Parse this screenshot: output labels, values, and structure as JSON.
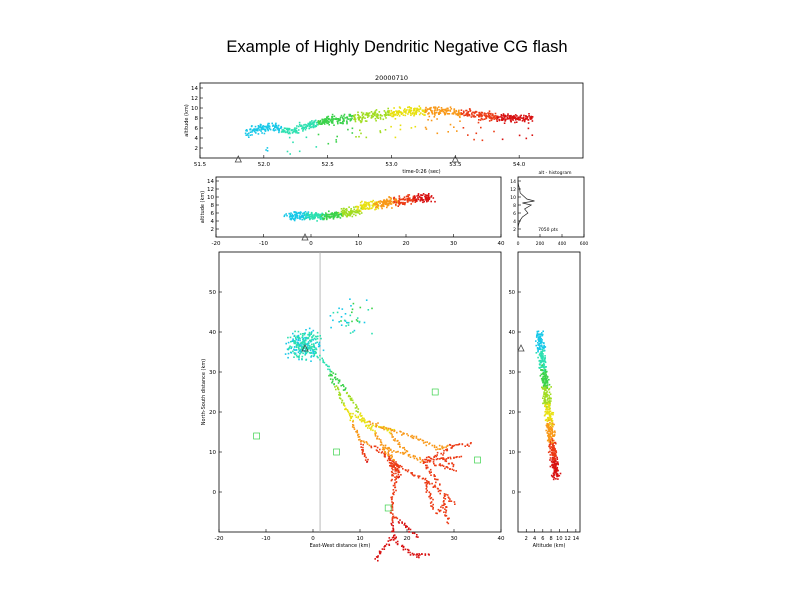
{
  "slide": {
    "title": "Example of Highly Dendritic Negative CG flash"
  },
  "colors": {
    "scale": [
      "#18c8e8",
      "#2ce0b0",
      "#3ad24a",
      "#a0dc20",
      "#e8e010",
      "#f89818",
      "#ec3a14",
      "#d81010"
    ],
    "frame": "#000000",
    "track": "#aaaaaa"
  },
  "chart_data": [
    {
      "panel": "altitude-time",
      "type": "scatter",
      "title": "20000710",
      "xlabel": "time-0:26 (sec)",
      "ylabel": "altitude (km)",
      "xlim": [
        51.5,
        54.5
      ],
      "ylim": [
        0,
        15
      ],
      "x_ticks": [
        "51.5",
        "52.0",
        "52.5",
        "53.0",
        "53.5",
        "54.0"
      ],
      "y_ticks": [
        "2",
        "4",
        "6",
        "8",
        "10",
        "12",
        "14"
      ],
      "triangle_markers_x": [
        51.8,
        53.5
      ],
      "sample_points": [
        {
          "x": 51.85,
          "y": 5.0
        },
        {
          "x": 52.05,
          "y": 6.5
        },
        {
          "x": 52.2,
          "y": 5.5
        },
        {
          "x": 52.45,
          "y": 7.5
        },
        {
          "x": 52.8,
          "y": 8.5
        },
        {
          "x": 53.1,
          "y": 9.5
        },
        {
          "x": 53.4,
          "y": 9.5
        },
        {
          "x": 53.75,
          "y": 8.5
        },
        {
          "x": 54.0,
          "y": 8.0
        }
      ]
    },
    {
      "panel": "altitude-eastwest",
      "type": "scatter",
      "xlabel": "",
      "ylabel": "altitude (km)",
      "xlim": [
        -20,
        40
      ],
      "ylim": [
        0,
        15
      ],
      "x_ticks": [
        "-20",
        "-10",
        "0",
        "10",
        "20",
        "30",
        "40"
      ],
      "y_ticks": [
        "2",
        "4",
        "6",
        "8",
        "10",
        "12",
        "14"
      ],
      "triangle_markers_x": [
        0
      ]
    },
    {
      "panel": "altitude-histogram",
      "type": "line",
      "title": "alt - histogram",
      "annotation": "7050 pts",
      "xlim": [
        0,
        600
      ],
      "ylim": [
        0,
        15
      ],
      "x_ticks": [
        "0",
        "200",
        "400",
        "600"
      ],
      "y_ticks": [
        "2",
        "4",
        "6",
        "8",
        "10",
        "12",
        "14"
      ],
      "x": [
        0,
        5,
        15,
        20,
        40,
        60,
        80,
        150,
        40,
        120,
        60,
        90,
        40,
        15,
        5,
        0
      ],
      "y": [
        14,
        13,
        12,
        11,
        10.5,
        10,
        9.5,
        9,
        8.5,
        8,
        7,
        6,
        5,
        4,
        3,
        2
      ]
    },
    {
      "panel": "plan-view",
      "type": "scatter",
      "xlabel": "East-West distance (km)",
      "ylabel": "North-South distance (km)",
      "xlim": [
        -20,
        40
      ],
      "ylim": [
        -10,
        60
      ],
      "x_ticks": [
        "-20",
        "-10",
        "0",
        "10",
        "20",
        "30",
        "40"
      ],
      "y_ticks": [
        "0",
        "10",
        "20",
        "30",
        "40",
        "50"
      ],
      "station_squares": [
        {
          "x": -12,
          "y": 14
        },
        {
          "x": 5,
          "y": 10
        },
        {
          "x": 16,
          "y": -4
        },
        {
          "x": 35,
          "y": 8
        },
        {
          "x": 26,
          "y": 25
        }
      ],
      "triangle_marker": {
        "x": 0,
        "y": 36
      }
    },
    {
      "panel": "altitude-northsouth",
      "type": "scatter",
      "xlabel": "Altitude (km)",
      "ylabel": "",
      "xlim": [
        0,
        15
      ],
      "ylim": [
        -10,
        60
      ],
      "x_ticks": [
        "2",
        "4",
        "6",
        "8",
        "10",
        "12",
        "14"
      ],
      "y_ticks": [
        "0",
        "10",
        "20",
        "30",
        "40",
        "50"
      ],
      "triangle_marker": {
        "x": 0,
        "y": 36
      }
    }
  ]
}
